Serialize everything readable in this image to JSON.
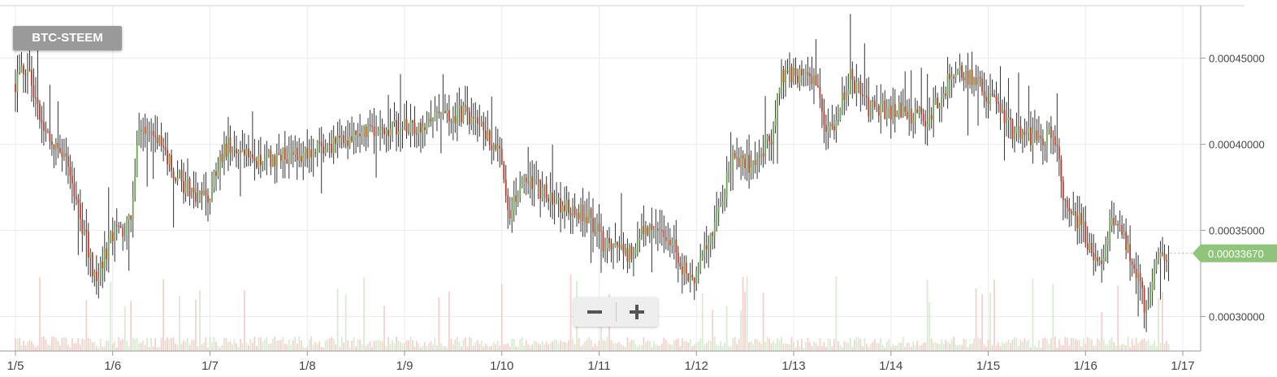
{
  "pair": "BTC-STEEM",
  "zoom": {
    "out_icon": "minus-icon",
    "in_icon": "plus-icon"
  },
  "colors": {
    "up": "#6aa84f",
    "down": "#c0392b",
    "wick": "#333333",
    "last_price": "#8fc47a"
  },
  "chart_data": {
    "type": "candlestick",
    "title": "",
    "xlabel": "",
    "ylabel": "",
    "x_range": [
      "1/5",
      "1/17"
    ],
    "x_ticks": [
      "1/5",
      "1/6",
      "1/7",
      "1/8",
      "1/9",
      "1/10",
      "1/11",
      "1/12",
      "1/13",
      "1/14",
      "1/15",
      "1/16",
      "1/17"
    ],
    "ylim": [
      0.00028,
      0.00048
    ],
    "y_ticks": [
      "0.00030000",
      "0.00035000",
      "0.00040000",
      "0.00045000"
    ],
    "grid": true,
    "last_price": "0.00033670",
    "price_path": [
      {
        "d": 0.0,
        "p": 0.000435
      },
      {
        "d": 0.15,
        "p": 0.000445
      },
      {
        "d": 0.3,
        "p": 0.00041
      },
      {
        "d": 0.55,
        "p": 0.000395
      },
      {
        "d": 0.7,
        "p": 0.000355
      },
      {
        "d": 0.85,
        "p": 0.00032
      },
      {
        "d": 1.0,
        "p": 0.000345
      },
      {
        "d": 1.2,
        "p": 0.000355
      },
      {
        "d": 1.3,
        "p": 0.00041
      },
      {
        "d": 1.5,
        "p": 0.0004
      },
      {
        "d": 1.75,
        "p": 0.000375
      },
      {
        "d": 2.0,
        "p": 0.00037
      },
      {
        "d": 2.2,
        "p": 0.0004
      },
      {
        "d": 2.5,
        "p": 0.00039
      },
      {
        "d": 3.0,
        "p": 0.000395
      },
      {
        "d": 3.5,
        "p": 0.000405
      },
      {
        "d": 4.0,
        "p": 0.00041
      },
      {
        "d": 4.5,
        "p": 0.000415
      },
      {
        "d": 4.65,
        "p": 0.00042
      },
      {
        "d": 5.0,
        "p": 0.000395
      },
      {
        "d": 5.1,
        "p": 0.00036
      },
      {
        "d": 5.3,
        "p": 0.00038
      },
      {
        "d": 5.6,
        "p": 0.000365
      },
      {
        "d": 5.9,
        "p": 0.00036
      },
      {
        "d": 6.1,
        "p": 0.00034
      },
      {
        "d": 6.3,
        "p": 0.000335
      },
      {
        "d": 6.5,
        "p": 0.00035
      },
      {
        "d": 6.75,
        "p": 0.000345
      },
      {
        "d": 6.95,
        "p": 0.00032
      },
      {
        "d": 7.15,
        "p": 0.00034
      },
      {
        "d": 7.3,
        "p": 0.00037
      },
      {
        "d": 7.4,
        "p": 0.000395
      },
      {
        "d": 7.6,
        "p": 0.000385
      },
      {
        "d": 7.8,
        "p": 0.000405
      },
      {
        "d": 7.9,
        "p": 0.00044
      },
      {
        "d": 8.2,
        "p": 0.00044
      },
      {
        "d": 8.4,
        "p": 0.000405
      },
      {
        "d": 8.6,
        "p": 0.00044
      },
      {
        "d": 8.8,
        "p": 0.00042
      },
      {
        "d": 9.1,
        "p": 0.00042
      },
      {
        "d": 9.4,
        "p": 0.000415
      },
      {
        "d": 9.7,
        "p": 0.000445
      },
      {
        "d": 10.0,
        "p": 0.00043
      },
      {
        "d": 10.3,
        "p": 0.000405
      },
      {
        "d": 10.7,
        "p": 0.000405
      },
      {
        "d": 10.8,
        "p": 0.00037
      },
      {
        "d": 11.0,
        "p": 0.00035
      },
      {
        "d": 11.15,
        "p": 0.00033
      },
      {
        "d": 11.3,
        "p": 0.000355
      },
      {
        "d": 11.5,
        "p": 0.000335
      },
      {
        "d": 11.65,
        "p": 0.0003
      },
      {
        "d": 11.75,
        "p": 0.000335
      },
      {
        "d": 11.85,
        "p": 0.00033
      },
      {
        "d": 11.87,
        "p": 0.000337
      }
    ],
    "volume_note": "volume bars along bottom"
  }
}
